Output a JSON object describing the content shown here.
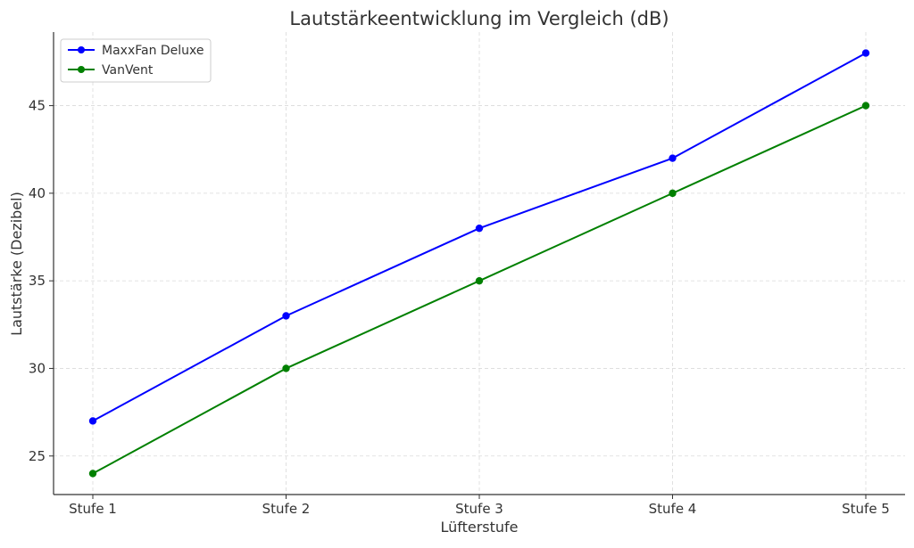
{
  "chart_data": {
    "type": "line",
    "title": "Lautstärkeentwicklung im Vergleich (dB)",
    "xlabel": "Lüfterstufe",
    "ylabel": "Lautstärke (Dezibel)",
    "categories": [
      "Stufe 1",
      "Stufe 2",
      "Stufe 3",
      "Stufe 4",
      "Stufe 5"
    ],
    "series": [
      {
        "name": "MaxxFan Deluxe",
        "values": [
          27,
          33,
          38,
          42,
          48
        ],
        "color": "#0000ff",
        "marker": "circle"
      },
      {
        "name": "VanVent",
        "values": [
          24,
          30,
          35,
          40,
          45
        ],
        "color": "#008000",
        "marker": "circle"
      }
    ],
    "ylim": [
      22.8,
      49.2
    ],
    "yticks": [
      25,
      30,
      35,
      40,
      45
    ],
    "grid": true,
    "legend_position": "top-left"
  }
}
